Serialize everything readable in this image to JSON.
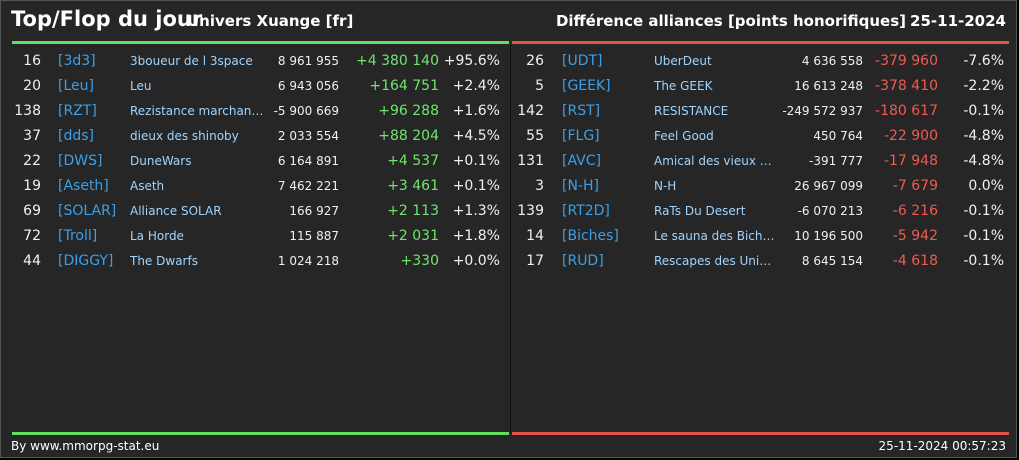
{
  "header": {
    "title": "Top/Flop du jour",
    "universe": "Univers Xuange [fr]",
    "right_title": "Différence alliances [points honorifiques]",
    "date": "25-11-2024"
  },
  "top": [
    {
      "rank": "16",
      "tag": "[3d3]",
      "name": "3boueur de l 3space",
      "total": "8 961 955",
      "diff": "+4 380 140",
      "pct": "+95.6%"
    },
    {
      "rank": "20",
      "tag": "[Leu]",
      "name": "Leu",
      "total": "6 943 056",
      "diff": "+164 751",
      "pct": "+2.4%"
    },
    {
      "rank": "138",
      "tag": "[RZT]",
      "name": "Rezistance marchande",
      "total": "-5 900 669",
      "diff": "+96 288",
      "pct": "+1.6%"
    },
    {
      "rank": "37",
      "tag": "[dds]",
      "name": "dieux des shinoby",
      "total": "2 033 554",
      "diff": "+88 204",
      "pct": "+4.5%"
    },
    {
      "rank": "22",
      "tag": "[DWS]",
      "name": "DuneWars",
      "total": "6 164 891",
      "diff": "+4 537",
      "pct": "+0.1%"
    },
    {
      "rank": "19",
      "tag": "[Aseth]",
      "name": "Aseth",
      "total": "7 462 221",
      "diff": "+3 461",
      "pct": "+0.1%"
    },
    {
      "rank": "69",
      "tag": "[SOLAR]",
      "name": "Alliance SOLAR",
      "total": "166 927",
      "diff": "+2 113",
      "pct": "+1.3%"
    },
    {
      "rank": "72",
      "tag": "[Troll]",
      "name": "La Horde",
      "total": "115 887",
      "diff": "+2 031",
      "pct": "+1.8%"
    },
    {
      "rank": "44",
      "tag": "[DIGGY]",
      "name": "The Dwarfs",
      "total": "1 024 218",
      "diff": "+330",
      "pct": "+0.0%"
    }
  ],
  "flop": [
    {
      "rank": "26",
      "tag": "[UDT]",
      "name": "UberDeut",
      "total": "4 636 558",
      "diff": "-379 960",
      "pct": "-7.6%"
    },
    {
      "rank": "5",
      "tag": "[GEEK]",
      "name": "The GEEK",
      "total": "16 613 248",
      "diff": "-378 410",
      "pct": "-2.2%"
    },
    {
      "rank": "142",
      "tag": "[RST]",
      "name": "RESISTANCE",
      "total": "-249 572 937",
      "diff": "-180 617",
      "pct": "-0.1%"
    },
    {
      "rank": "55",
      "tag": "[FLG]",
      "name": "Feel Good",
      "total": "450 764",
      "diff": "-22 900",
      "pct": "-4.8%"
    },
    {
      "rank": "131",
      "tag": "[AVC]",
      "name": "Amical des vieux co...",
      "total": "-391 777",
      "diff": "-17 948",
      "pct": "-4.8%"
    },
    {
      "rank": "3",
      "tag": "[N-H]",
      "name": "N-H",
      "total": "26 967 099",
      "diff": "-7 679",
      "pct": "0.0%"
    },
    {
      "rank": "139",
      "tag": "[RT2D]",
      "name": "RaTs Du Desert",
      "total": "-6 070 213",
      "diff": "-6 216",
      "pct": "-0.1%"
    },
    {
      "rank": "14",
      "tag": "[Biches]",
      "name": "Le sauna des Biche...",
      "total": "10 196 500",
      "diff": "-5 942",
      "pct": "-0.1%"
    },
    {
      "rank": "17",
      "tag": "[RUD]",
      "name": "Rescapes des Univ...",
      "total": "8 645 154",
      "diff": "-4 618",
      "pct": "-0.1%"
    }
  ],
  "footer": {
    "source": "By www.mmorpg-stat.eu",
    "timestamp": "25-11-2024 00:57:23"
  },
  "colors": {
    "gain": "#6ee66e",
    "loss": "#f05a50",
    "tag": "#3aa0e8",
    "name": "#9fd4ff"
  }
}
